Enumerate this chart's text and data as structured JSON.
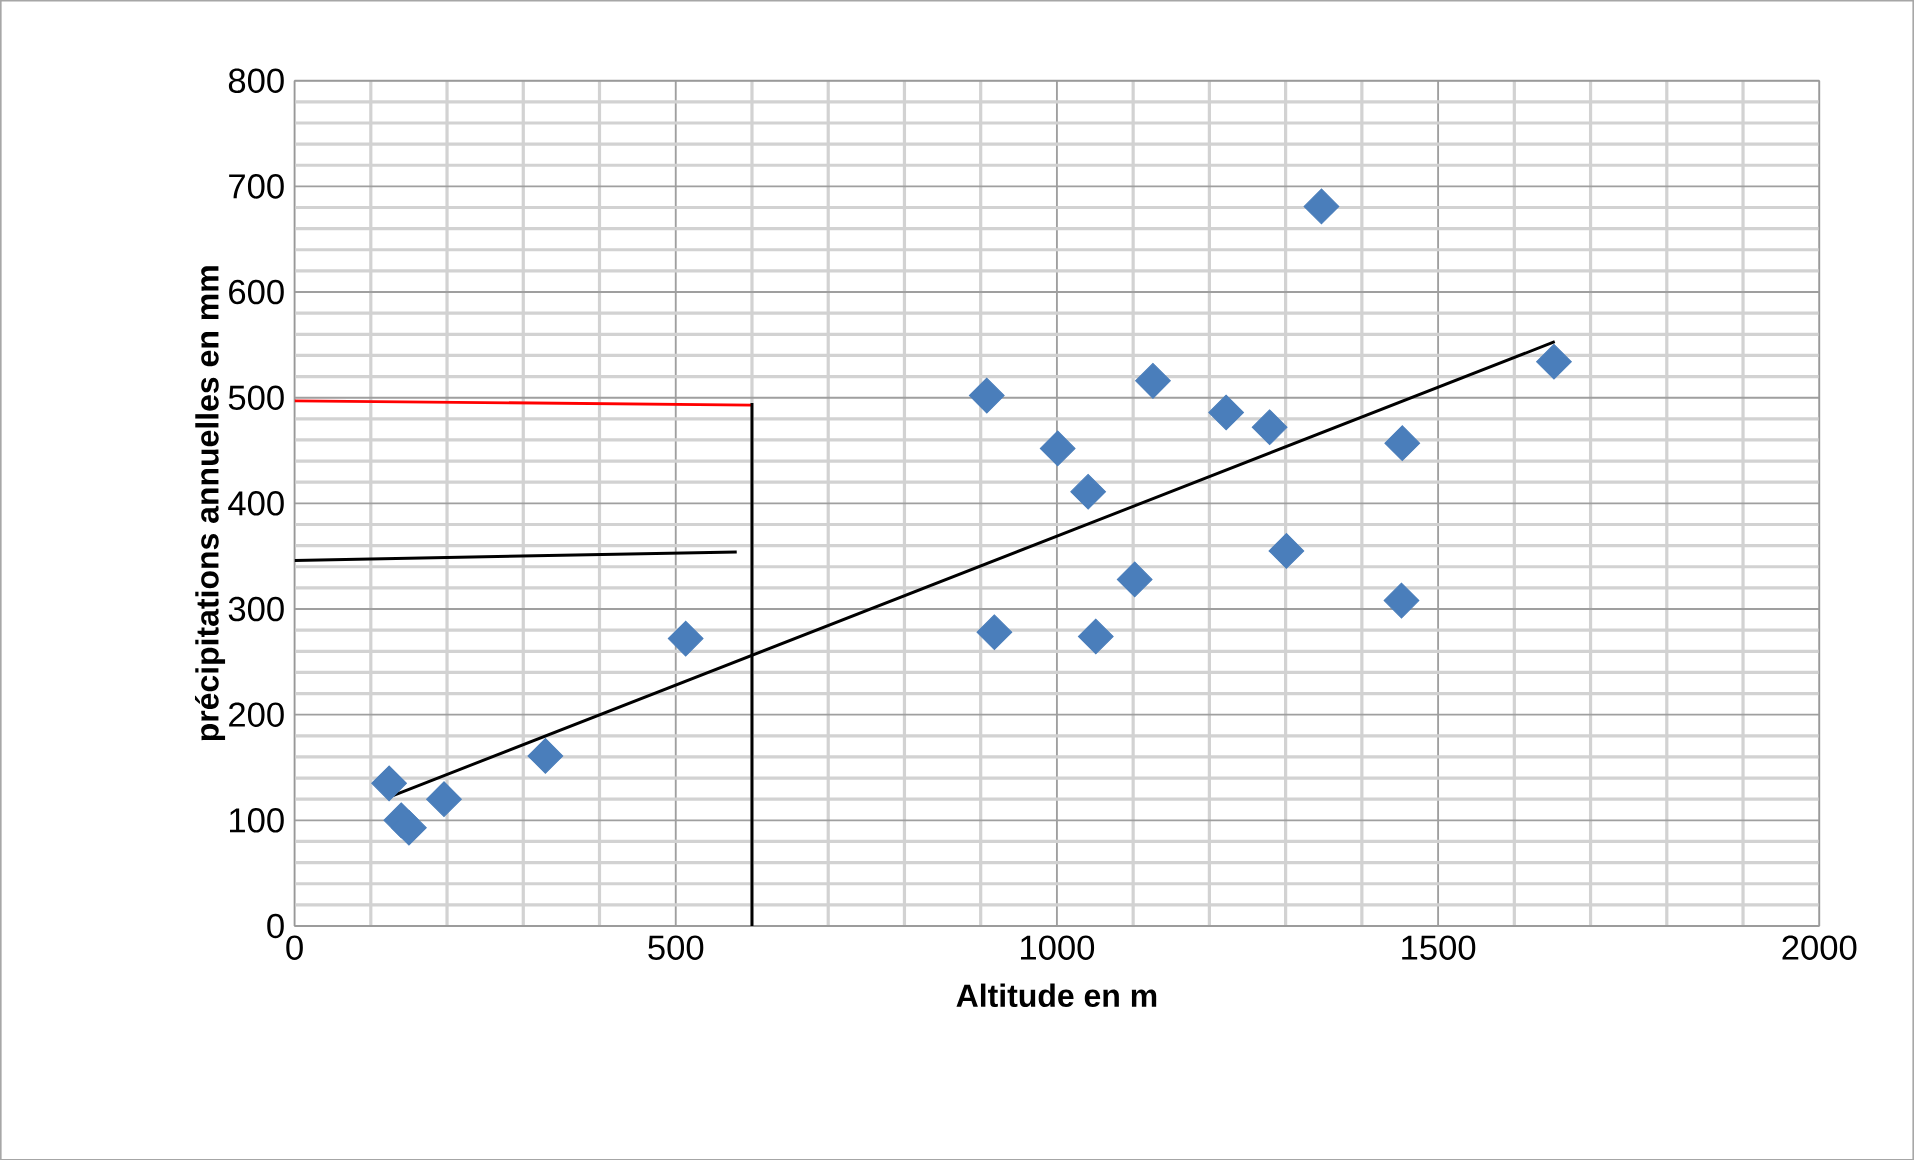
{
  "chart_data": {
    "type": "scatter",
    "xlabel": "Altitude en m",
    "ylabel": "précipitations annuelles en mm",
    "xlim": [
      0,
      2000
    ],
    "xticks": [
      0,
      500,
      1000,
      1500,
      2000
    ],
    "ylim": [
      0,
      800
    ],
    "yticks": [
      0,
      100,
      200,
      300,
      400,
      500,
      600,
      700,
      800
    ],
    "grid": true,
    "series": [
      {
        "marker": "diamond",
        "color": "#4a7ebb",
        "x": [
          124,
          140,
          150,
          196,
          329,
          513,
          908,
          918,
          1001,
          1041,
          1051,
          1102,
          1126,
          1222,
          1279,
          1301,
          1347,
          1452,
          1453,
          1652
        ],
        "values": [
          135,
          100,
          93,
          120,
          161,
          272,
          502,
          278,
          452,
          411,
          274,
          328,
          516,
          486,
          472,
          355,
          681,
          308,
          457,
          534
        ]
      },
      {
        "type": "line",
        "color": "#000000",
        "x": [
          124,
          1653
        ],
        "values": [
          122,
          553
        ]
      },
      {
        "type": "line",
        "color": "#ff0000",
        "x": [
          0,
          600
        ],
        "values": [
          497,
          493
        ]
      },
      {
        "type": "line",
        "color": "#000000",
        "x": [
          0,
          580
        ],
        "values": [
          346,
          354
        ]
      },
      {
        "type": "line",
        "color": "#000000",
        "x": [
          600,
          600
        ],
        "values": [
          495,
          0
        ]
      }
    ]
  }
}
